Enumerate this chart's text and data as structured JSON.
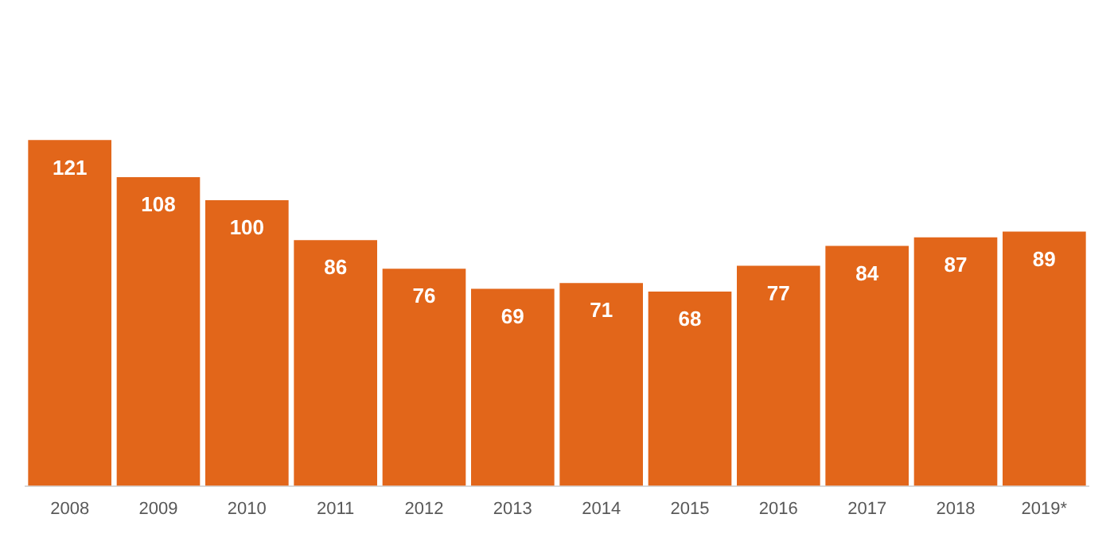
{
  "chart_data": {
    "type": "bar",
    "categories": [
      "2008",
      "2009",
      "2010",
      "2011",
      "2012",
      "2013",
      "2014",
      "2015",
      "2016",
      "2017",
      "2018",
      "2019*"
    ],
    "values": [
      121,
      108,
      100,
      86,
      76,
      69,
      71,
      68,
      77,
      84,
      87,
      89
    ],
    "color": "#e2661a",
    "data_labels": true,
    "grid": false,
    "legend": false,
    "tick_labels": "x"
  }
}
